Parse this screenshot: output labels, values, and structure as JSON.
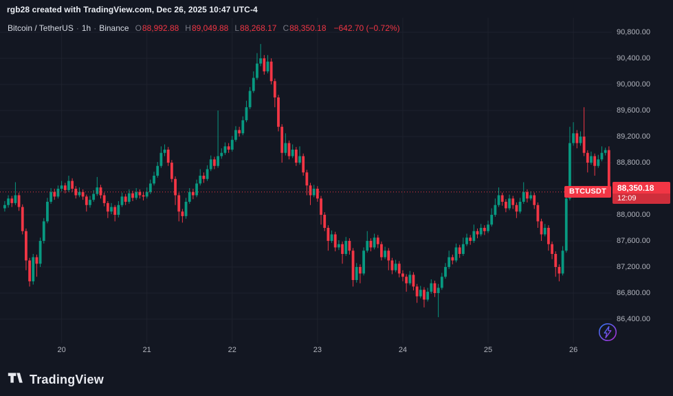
{
  "attribution": "rgb28 created with TradingView.com, Dec 26, 2025 10:47 UTC-4",
  "header": {
    "title": "Bitcoin / TetherUS",
    "sep": "·",
    "interval": "1h",
    "exchange": "Binance",
    "ohlc": [
      {
        "label": "O",
        "value": "88,992.88"
      },
      {
        "label": "H",
        "value": "89,049.88"
      },
      {
        "label": "L",
        "value": "88,268.17"
      },
      {
        "label": "C",
        "value": "88,350.18"
      }
    ],
    "change": "−642.70 (−0.72%)"
  },
  "price_label": {
    "symbol": "BTCUSDT",
    "price": "88,350.18",
    "countdown": "12:09"
  },
  "logo": {
    "text": "TradingView"
  },
  "colors": {
    "bg": "#131722",
    "up": "#089981",
    "down": "#f23645",
    "grid": "#1e222d",
    "axis_text": "#b2b5be",
    "muted_text": "#787b86"
  },
  "chart_data": {
    "type": "candlestick",
    "symbol": "BTCUSDT",
    "exchange": "Binance",
    "interval": "1h",
    "last_price": 88350.18,
    "x_axis": {
      "labels": [
        "20",
        "21",
        "22",
        "23",
        "24",
        "25",
        "26"
      ],
      "candle_index": [
        16,
        40,
        64,
        88,
        112,
        136,
        160
      ]
    },
    "y_axis": {
      "ticks": [
        90800,
        90400,
        90000,
        89600,
        89200,
        88800,
        88400,
        88000,
        87600,
        87200,
        86800,
        86400
      ],
      "labels": [
        "90,800.00",
        "90,400.00",
        "90,000.00",
        "89,600.00",
        "89,200.00",
        "88,800.00",
        "88,400.00",
        "88,000.00",
        "87,600.00",
        "87,200.00",
        "86,800.00",
        "86,400.00"
      ],
      "min": 86200,
      "max": 90900
    },
    "candles": [
      [
        88100,
        88210,
        88050,
        88150
      ],
      [
        88150,
        88300,
        88110,
        88250
      ],
      [
        88250,
        88290,
        88120,
        88180
      ],
      [
        88180,
        88500,
        88150,
        88300
      ],
      [
        88300,
        88340,
        88060,
        88120
      ],
      [
        88120,
        88160,
        87700,
        87750
      ],
      [
        87750,
        87790,
        87150,
        87300
      ],
      [
        87300,
        87340,
        86900,
        86980
      ],
      [
        86980,
        87400,
        86930,
        87350
      ],
      [
        87350,
        87390,
        87050,
        87250
      ],
      [
        87250,
        87650,
        87200,
        87600
      ],
      [
        87600,
        87950,
        87560,
        87900
      ],
      [
        87900,
        88260,
        87870,
        88200
      ],
      [
        88200,
        88410,
        88170,
        88350
      ],
      [
        88350,
        88400,
        88230,
        88280
      ],
      [
        88280,
        88450,
        88250,
        88400
      ],
      [
        88400,
        88520,
        88360,
        88450
      ],
      [
        88450,
        88490,
        88330,
        88380
      ],
      [
        88380,
        88600,
        88350,
        88520
      ],
      [
        88520,
        88560,
        88350,
        88400
      ],
      [
        88400,
        88440,
        88250,
        88300
      ],
      [
        88300,
        88420,
        88270,
        88350
      ],
      [
        88350,
        88390,
        88230,
        88280
      ],
      [
        88280,
        88310,
        88050,
        88150
      ],
      [
        88150,
        88290,
        88110,
        88230
      ],
      [
        88230,
        88380,
        88200,
        88320
      ],
      [
        88320,
        88580,
        88290,
        88420
      ],
      [
        88420,
        88460,
        88250,
        88300
      ],
      [
        88300,
        88340,
        88130,
        88180
      ],
      [
        88180,
        88210,
        87950,
        88050
      ],
      [
        88050,
        88180,
        88010,
        88120
      ],
      [
        88120,
        88150,
        87900,
        88000
      ],
      [
        88000,
        88210,
        87960,
        88150
      ],
      [
        88150,
        88340,
        88120,
        88280
      ],
      [
        88280,
        88320,
        88150,
        88200
      ],
      [
        88200,
        88390,
        88170,
        88330
      ],
      [
        88330,
        88370,
        88210,
        88260
      ],
      [
        88260,
        88410,
        88230,
        88350
      ],
      [
        88350,
        88390,
        88250,
        88300
      ],
      [
        88300,
        88350,
        88220,
        88280
      ],
      [
        88280,
        88420,
        88250,
        88350
      ],
      [
        88350,
        88540,
        88320,
        88480
      ],
      [
        88480,
        88660,
        88450,
        88600
      ],
      [
        88600,
        88810,
        88570,
        88750
      ],
      [
        88750,
        89050,
        88720,
        88950
      ],
      [
        88950,
        89080,
        88900,
        89000
      ],
      [
        89000,
        89040,
        88750,
        88800
      ],
      [
        88800,
        88840,
        88500,
        88550
      ],
      [
        88550,
        88590,
        88150,
        88300
      ],
      [
        88300,
        88340,
        87900,
        88050
      ],
      [
        88050,
        88090,
        87880,
        87980
      ],
      [
        87980,
        88260,
        87940,
        88200
      ],
      [
        88200,
        88410,
        88170,
        88350
      ],
      [
        88350,
        88400,
        88240,
        88300
      ],
      [
        88300,
        88540,
        88270,
        88480
      ],
      [
        88480,
        88700,
        88450,
        88600
      ],
      [
        88600,
        88650,
        88490,
        88550
      ],
      [
        88550,
        88760,
        88520,
        88700
      ],
      [
        88700,
        88910,
        88670,
        88850
      ],
      [
        88850,
        88890,
        88700,
        88750
      ],
      [
        88750,
        89600,
        88720,
        88900
      ],
      [
        88900,
        89020,
        88860,
        88950
      ],
      [
        88950,
        89110,
        88920,
        89050
      ],
      [
        89050,
        89100,
        88950,
        89000
      ],
      [
        89000,
        89210,
        88970,
        89150
      ],
      [
        89150,
        89360,
        89120,
        89300
      ],
      [
        89300,
        89350,
        89200,
        89250
      ],
      [
        89250,
        89510,
        89220,
        89450
      ],
      [
        89450,
        89750,
        89420,
        89650
      ],
      [
        89650,
        89960,
        89620,
        89900
      ],
      [
        89900,
        90200,
        89870,
        90100
      ],
      [
        90100,
        90480,
        90070,
        90320
      ],
      [
        90320,
        90620,
        90280,
        90400
      ],
      [
        90400,
        90450,
        90150,
        90200
      ],
      [
        90200,
        90450,
        90170,
        90350
      ],
      [
        90350,
        90400,
        90000,
        90050
      ],
      [
        90050,
        90090,
        89650,
        89800
      ],
      [
        89800,
        89840,
        89280,
        89350
      ],
      [
        89350,
        89390,
        88800,
        88950
      ],
      [
        88950,
        89250,
        88910,
        89100
      ],
      [
        89100,
        89140,
        88850,
        88900
      ],
      [
        88900,
        89080,
        88870,
        89000
      ],
      [
        89000,
        89040,
        88750,
        88800
      ],
      [
        88800,
        89050,
        88770,
        88900
      ],
      [
        88900,
        88940,
        88600,
        88650
      ],
      [
        88650,
        88690,
        88300,
        88450
      ],
      [
        88450,
        88490,
        88150,
        88300
      ],
      [
        88300,
        88460,
        88270,
        88400
      ],
      [
        88400,
        88440,
        88200,
        88250
      ],
      [
        88250,
        88290,
        87850,
        88000
      ],
      [
        88000,
        88040,
        87750,
        87800
      ],
      [
        87800,
        87840,
        87450,
        87600
      ],
      [
        87600,
        87760,
        87570,
        87700
      ],
      [
        87700,
        87740,
        87440,
        87500
      ],
      [
        87500,
        87610,
        87460,
        87550
      ],
      [
        87550,
        87590,
        87250,
        87400
      ],
      [
        87400,
        87660,
        87370,
        87600
      ],
      [
        87600,
        87640,
        87390,
        87450
      ],
      [
        87450,
        87490,
        86900,
        87000
      ],
      [
        87000,
        87260,
        86960,
        87200
      ],
      [
        87200,
        87240,
        86950,
        87100
      ],
      [
        87100,
        87500,
        87070,
        87450
      ],
      [
        87450,
        87750,
        87420,
        87600
      ],
      [
        87600,
        87640,
        87440,
        87500
      ],
      [
        87500,
        87710,
        87470,
        87650
      ],
      [
        87650,
        87690,
        87490,
        87550
      ],
      [
        87550,
        87590,
        87300,
        87350
      ],
      [
        87350,
        87510,
        87320,
        87450
      ],
      [
        87450,
        87490,
        87150,
        87300
      ],
      [
        87300,
        87340,
        87090,
        87150
      ],
      [
        87150,
        87310,
        87120,
        87250
      ],
      [
        87250,
        87290,
        87040,
        87100
      ],
      [
        87100,
        87150,
        86980,
        87050
      ],
      [
        87050,
        87090,
        86820,
        86950
      ],
      [
        86950,
        87140,
        86920,
        87080
      ],
      [
        87080,
        87120,
        86840,
        86900
      ],
      [
        86900,
        86940,
        86650,
        86750
      ],
      [
        86750,
        86910,
        86720,
        86850
      ],
      [
        86850,
        86890,
        86580,
        86700
      ],
      [
        86700,
        86880,
        86670,
        86820
      ],
      [
        86820,
        87010,
        86790,
        86950
      ],
      [
        86950,
        86990,
        86740,
        86800
      ],
      [
        86800,
        86940,
        86430,
        86880
      ],
      [
        86880,
        87110,
        86850,
        87050
      ],
      [
        87050,
        87260,
        87020,
        87200
      ],
      [
        87200,
        87450,
        87170,
        87350
      ],
      [
        87350,
        87390,
        87240,
        87300
      ],
      [
        87300,
        87560,
        87270,
        87500
      ],
      [
        87500,
        87540,
        87340,
        87400
      ],
      [
        87400,
        87650,
        87370,
        87550
      ],
      [
        87550,
        87710,
        87520,
        87650
      ],
      [
        87650,
        87690,
        87540,
        87600
      ],
      [
        87600,
        87850,
        87570,
        87750
      ],
      [
        87750,
        87790,
        87640,
        87700
      ],
      [
        87700,
        87860,
        87670,
        87800
      ],
      [
        87800,
        87840,
        87690,
        87750
      ],
      [
        87750,
        87910,
        87720,
        87850
      ],
      [
        87850,
        88100,
        87820,
        88000
      ],
      [
        88000,
        88250,
        87970,
        88150
      ],
      [
        88150,
        88420,
        88120,
        88300
      ],
      [
        88300,
        88340,
        88140,
        88200
      ],
      [
        88200,
        88240,
        88040,
        88100
      ],
      [
        88100,
        88310,
        88070,
        88250
      ],
      [
        88250,
        88290,
        88090,
        88150
      ],
      [
        88150,
        88190,
        87950,
        88050
      ],
      [
        88050,
        88260,
        88020,
        88200
      ],
      [
        88200,
        88500,
        88170,
        88350
      ],
      [
        88350,
        88390,
        88190,
        88250
      ],
      [
        88250,
        88360,
        88220,
        88300
      ],
      [
        88300,
        88340,
        88090,
        88150
      ],
      [
        88150,
        88190,
        87800,
        87900
      ],
      [
        87900,
        87940,
        87600,
        87700
      ],
      [
        87700,
        87860,
        87670,
        87800
      ],
      [
        87800,
        87840,
        87450,
        87550
      ],
      [
        87550,
        87590,
        87320,
        87400
      ],
      [
        87400,
        87440,
        87050,
        87200
      ],
      [
        87200,
        87240,
        86980,
        87100
      ],
      [
        87100,
        87520,
        87070,
        87450
      ],
      [
        87450,
        88400,
        87420,
        88250
      ],
      [
        88250,
        89350,
        88220,
        89100
      ],
      [
        89100,
        89420,
        89060,
        89250
      ],
      [
        89250,
        89300,
        89020,
        89100
      ],
      [
        89100,
        89280,
        89060,
        89200
      ],
      [
        89200,
        89650,
        88900,
        88950
      ],
      [
        88950,
        88990,
        88650,
        88800
      ],
      [
        88800,
        88970,
        88770,
        88900
      ],
      [
        88900,
        88940,
        88600,
        88750
      ],
      [
        88750,
        88920,
        88720,
        88850
      ],
      [
        88850,
        89050,
        88820,
        88950
      ],
      [
        88950,
        89030,
        88910,
        88993
      ],
      [
        88992.88,
        89049.88,
        88268.17,
        88350.18
      ]
    ]
  }
}
